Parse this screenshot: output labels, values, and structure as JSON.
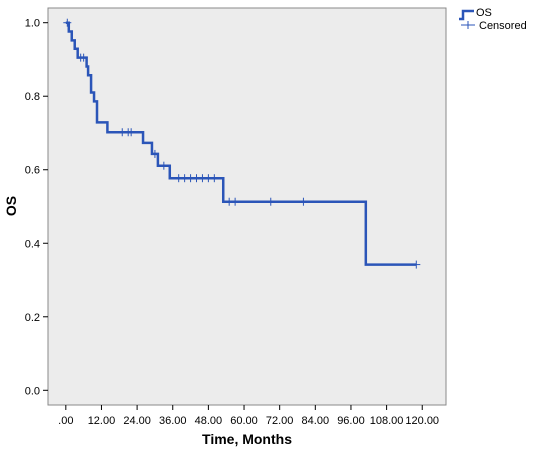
{
  "chart_data": {
    "type": "line",
    "title": "",
    "xlabel": "Time, Months",
    "ylabel": "OS",
    "xlim": [
      -6,
      128
    ],
    "ylim": [
      -0.04,
      1.04
    ],
    "x_ticks": [
      0,
      12,
      24,
      36,
      48,
      60,
      72,
      84,
      96,
      108,
      120
    ],
    "x_tick_labels": [
      ".00",
      "12.00",
      "24.00",
      "36.00",
      "48.00",
      "60.00",
      "72.00",
      "84.00",
      "96.00",
      "108.00",
      "120.00"
    ],
    "y_ticks": [
      0,
      0.2,
      0.4,
      0.6,
      0.8,
      1.0
    ],
    "y_tick_labels": [
      "0.0",
      "0.2",
      "0.4",
      "0.6",
      "0.8",
      "1.0"
    ],
    "grid": false,
    "background_color": "#ececec",
    "legend_placement": "top-right, outside plot",
    "series": [
      {
        "name": "OS",
        "style": "step",
        "color": "#2b55b8",
        "points": [
          [
            0,
            1.0
          ],
          [
            1,
            0.976
          ],
          [
            2,
            0.952
          ],
          [
            3,
            0.929
          ],
          [
            4,
            0.905
          ],
          [
            7,
            0.881
          ],
          [
            7.5,
            0.857
          ],
          [
            8.5,
            0.81
          ],
          [
            9.5,
            0.786
          ],
          [
            10.5,
            0.729
          ],
          [
            14,
            0.702
          ],
          [
            26,
            0.673
          ],
          [
            29,
            0.643
          ],
          [
            31,
            0.611
          ],
          [
            35,
            0.577
          ],
          [
            53,
            0.513
          ],
          [
            101,
            0.342
          ],
          [
            118,
            0.342
          ]
        ]
      },
      {
        "name": "Censored",
        "style": "markers",
        "marker": "+",
        "color": "#2b55b8",
        "points": [
          [
            0.5,
            1.0
          ],
          [
            5,
            0.905
          ],
          [
            6,
            0.905
          ],
          [
            19,
            0.702
          ],
          [
            21,
            0.702
          ],
          [
            22,
            0.702
          ],
          [
            30,
            0.643
          ],
          [
            33,
            0.611
          ],
          [
            38,
            0.577
          ],
          [
            40,
            0.577
          ],
          [
            42,
            0.577
          ],
          [
            44,
            0.577
          ],
          [
            46,
            0.577
          ],
          [
            48,
            0.577
          ],
          [
            50,
            0.577
          ],
          [
            55,
            0.513
          ],
          [
            57,
            0.513
          ],
          [
            69,
            0.513
          ],
          [
            80,
            0.513
          ],
          [
            118,
            0.342
          ]
        ]
      }
    ]
  }
}
